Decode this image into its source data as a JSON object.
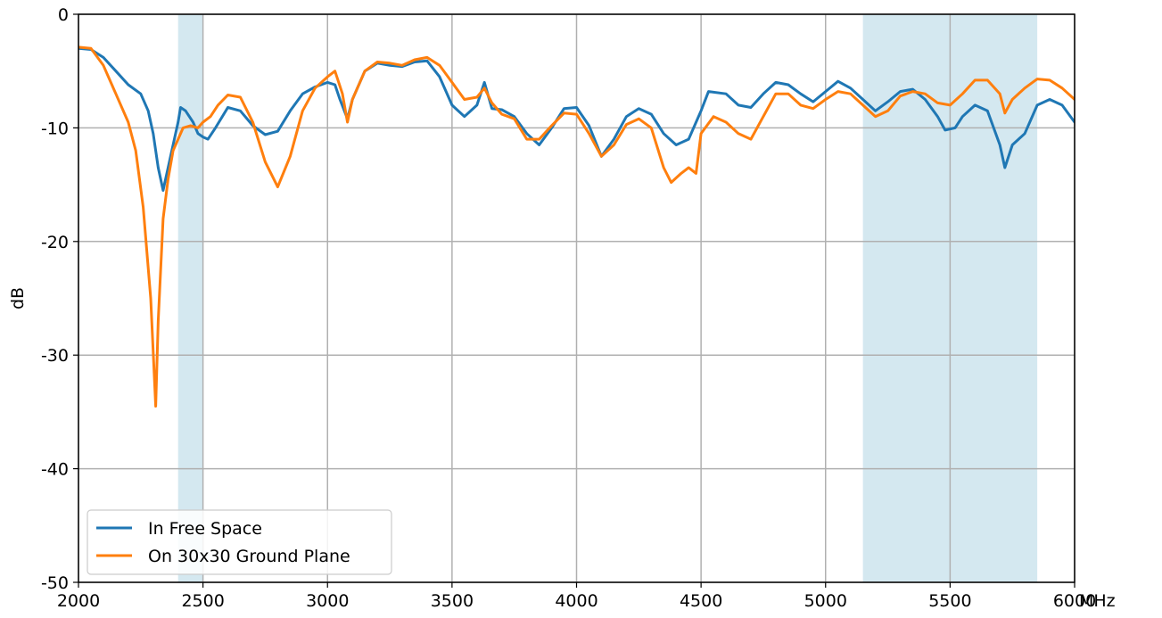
{
  "chart_data": {
    "type": "line",
    "title": "",
    "xlabel": "MHz",
    "ylabel": "dB",
    "xlim": [
      2000,
      6000
    ],
    "ylim": [
      -50,
      0
    ],
    "xticks": [
      2000,
      2500,
      3000,
      3500,
      4000,
      4500,
      5000,
      5500,
      6000
    ],
    "yticks": [
      0,
      -10,
      -20,
      -30,
      -40,
      -50
    ],
    "grid": true,
    "legend_position": "lower-left",
    "shaded_bands": [
      {
        "x0": 2400,
        "x1": 2500,
        "color": "#d4e8f0"
      },
      {
        "x0": 5150,
        "x1": 5850,
        "color": "#d4e8f0"
      }
    ],
    "series": [
      {
        "name": "In Free Space",
        "color": "#1f77b4",
        "points": [
          [
            2000,
            -3.0
          ],
          [
            2050,
            -3.1
          ],
          [
            2100,
            -3.8
          ],
          [
            2150,
            -5.0
          ],
          [
            2200,
            -6.2
          ],
          [
            2250,
            -7.0
          ],
          [
            2280,
            -8.5
          ],
          [
            2300,
            -10.5
          ],
          [
            2320,
            -13.5
          ],
          [
            2340,
            -15.5
          ],
          [
            2360,
            -13.5
          ],
          [
            2380,
            -11.5
          ],
          [
            2400,
            -9.5
          ],
          [
            2410,
            -8.2
          ],
          [
            2430,
            -8.5
          ],
          [
            2460,
            -9.5
          ],
          [
            2480,
            -10.5
          ],
          [
            2500,
            -10.8
          ],
          [
            2520,
            -11.0
          ],
          [
            2550,
            -10.0
          ],
          [
            2600,
            -8.2
          ],
          [
            2650,
            -8.5
          ],
          [
            2700,
            -9.8
          ],
          [
            2750,
            -10.6
          ],
          [
            2800,
            -10.3
          ],
          [
            2850,
            -8.5
          ],
          [
            2900,
            -7.0
          ],
          [
            2950,
            -6.4
          ],
          [
            3000,
            -6.0
          ],
          [
            3030,
            -6.2
          ],
          [
            3050,
            -7.5
          ],
          [
            3080,
            -9.2
          ],
          [
            3100,
            -7.5
          ],
          [
            3150,
            -5.0
          ],
          [
            3200,
            -4.3
          ],
          [
            3250,
            -4.5
          ],
          [
            3300,
            -4.6
          ],
          [
            3350,
            -4.2
          ],
          [
            3400,
            -4.1
          ],
          [
            3450,
            -5.5
          ],
          [
            3500,
            -8.0
          ],
          [
            3550,
            -9.0
          ],
          [
            3600,
            -8.0
          ],
          [
            3630,
            -6.0
          ],
          [
            3660,
            -8.3
          ],
          [
            3700,
            -8.4
          ],
          [
            3750,
            -9.0
          ],
          [
            3800,
            -10.5
          ],
          [
            3850,
            -11.5
          ],
          [
            3900,
            -10.0
          ],
          [
            3950,
            -8.3
          ],
          [
            4000,
            -8.2
          ],
          [
            4050,
            -9.8
          ],
          [
            4100,
            -12.5
          ],
          [
            4150,
            -11.0
          ],
          [
            4200,
            -9.0
          ],
          [
            4250,
            -8.3
          ],
          [
            4300,
            -8.8
          ],
          [
            4350,
            -10.5
          ],
          [
            4400,
            -11.5
          ],
          [
            4450,
            -11.0
          ],
          [
            4500,
            -8.5
          ],
          [
            4530,
            -6.8
          ],
          [
            4600,
            -7.0
          ],
          [
            4650,
            -8.0
          ],
          [
            4700,
            -8.2
          ],
          [
            4750,
            -7.0
          ],
          [
            4800,
            -6.0
          ],
          [
            4850,
            -6.2
          ],
          [
            4900,
            -7.0
          ],
          [
            4950,
            -7.7
          ],
          [
            5000,
            -6.8
          ],
          [
            5050,
            -5.9
          ],
          [
            5100,
            -6.5
          ],
          [
            5150,
            -7.5
          ],
          [
            5200,
            -8.5
          ],
          [
            5250,
            -7.7
          ],
          [
            5300,
            -6.8
          ],
          [
            5350,
            -6.6
          ],
          [
            5400,
            -7.5
          ],
          [
            5450,
            -9.0
          ],
          [
            5480,
            -10.2
          ],
          [
            5520,
            -10.0
          ],
          [
            5550,
            -9.0
          ],
          [
            5600,
            -8.0
          ],
          [
            5650,
            -8.5
          ],
          [
            5700,
            -11.5
          ],
          [
            5720,
            -13.5
          ],
          [
            5750,
            -11.5
          ],
          [
            5800,
            -10.5
          ],
          [
            5850,
            -8.0
          ],
          [
            5900,
            -7.5
          ],
          [
            5950,
            -8.0
          ],
          [
            6000,
            -9.5
          ]
        ]
      },
      {
        "name": "On 30x30 Ground Plane",
        "color": "#ff7f0e",
        "points": [
          [
            2000,
            -2.9
          ],
          [
            2050,
            -3.0
          ],
          [
            2100,
            -4.5
          ],
          [
            2150,
            -7.0
          ],
          [
            2200,
            -9.5
          ],
          [
            2230,
            -12.0
          ],
          [
            2260,
            -17.0
          ],
          [
            2290,
            -25.0
          ],
          [
            2310,
            -34.5
          ],
          [
            2320,
            -27.0
          ],
          [
            2340,
            -18.0
          ],
          [
            2360,
            -14.5
          ],
          [
            2380,
            -12.0
          ],
          [
            2400,
            -11.0
          ],
          [
            2420,
            -10.0
          ],
          [
            2450,
            -9.8
          ],
          [
            2480,
            -10.0
          ],
          [
            2500,
            -9.5
          ],
          [
            2530,
            -9.0
          ],
          [
            2560,
            -8.0
          ],
          [
            2600,
            -7.1
          ],
          [
            2650,
            -7.3
          ],
          [
            2700,
            -9.5
          ],
          [
            2750,
            -13.0
          ],
          [
            2800,
            -15.2
          ],
          [
            2850,
            -12.5
          ],
          [
            2900,
            -8.5
          ],
          [
            2950,
            -6.5
          ],
          [
            3000,
            -5.5
          ],
          [
            3030,
            -5.0
          ],
          [
            3060,
            -7.0
          ],
          [
            3080,
            -9.5
          ],
          [
            3100,
            -7.5
          ],
          [
            3150,
            -5.0
          ],
          [
            3200,
            -4.2
          ],
          [
            3250,
            -4.3
          ],
          [
            3300,
            -4.5
          ],
          [
            3350,
            -4.0
          ],
          [
            3400,
            -3.8
          ],
          [
            3450,
            -4.5
          ],
          [
            3500,
            -6.0
          ],
          [
            3550,
            -7.5
          ],
          [
            3600,
            -7.3
          ],
          [
            3630,
            -6.5
          ],
          [
            3660,
            -7.8
          ],
          [
            3700,
            -8.8
          ],
          [
            3750,
            -9.2
          ],
          [
            3800,
            -11.0
          ],
          [
            3850,
            -11.0
          ],
          [
            3900,
            -9.8
          ],
          [
            3950,
            -8.7
          ],
          [
            4000,
            -8.8
          ],
          [
            4050,
            -10.5
          ],
          [
            4100,
            -12.5
          ],
          [
            4150,
            -11.5
          ],
          [
            4200,
            -9.7
          ],
          [
            4250,
            -9.2
          ],
          [
            4300,
            -10.0
          ],
          [
            4350,
            -13.5
          ],
          [
            4380,
            -14.8
          ],
          [
            4420,
            -14.0
          ],
          [
            4450,
            -13.5
          ],
          [
            4480,
            -14.0
          ],
          [
            4500,
            -10.5
          ],
          [
            4550,
            -9.0
          ],
          [
            4600,
            -9.5
          ],
          [
            4650,
            -10.5
          ],
          [
            4700,
            -11.0
          ],
          [
            4750,
            -9.0
          ],
          [
            4800,
            -7.0
          ],
          [
            4850,
            -7.0
          ],
          [
            4900,
            -8.0
          ],
          [
            4950,
            -8.3
          ],
          [
            5000,
            -7.5
          ],
          [
            5050,
            -6.8
          ],
          [
            5100,
            -7.0
          ],
          [
            5150,
            -8.0
          ],
          [
            5200,
            -9.0
          ],
          [
            5250,
            -8.5
          ],
          [
            5300,
            -7.2
          ],
          [
            5350,
            -6.8
          ],
          [
            5400,
            -7.0
          ],
          [
            5450,
            -7.8
          ],
          [
            5500,
            -8.0
          ],
          [
            5550,
            -7.0
          ],
          [
            5600,
            -5.8
          ],
          [
            5650,
            -5.8
          ],
          [
            5700,
            -7.0
          ],
          [
            5720,
            -8.7
          ],
          [
            5750,
            -7.5
          ],
          [
            5800,
            -6.5
          ],
          [
            5850,
            -5.7
          ],
          [
            5900,
            -5.8
          ],
          [
            5950,
            -6.5
          ],
          [
            6000,
            -7.5
          ]
        ]
      }
    ]
  }
}
